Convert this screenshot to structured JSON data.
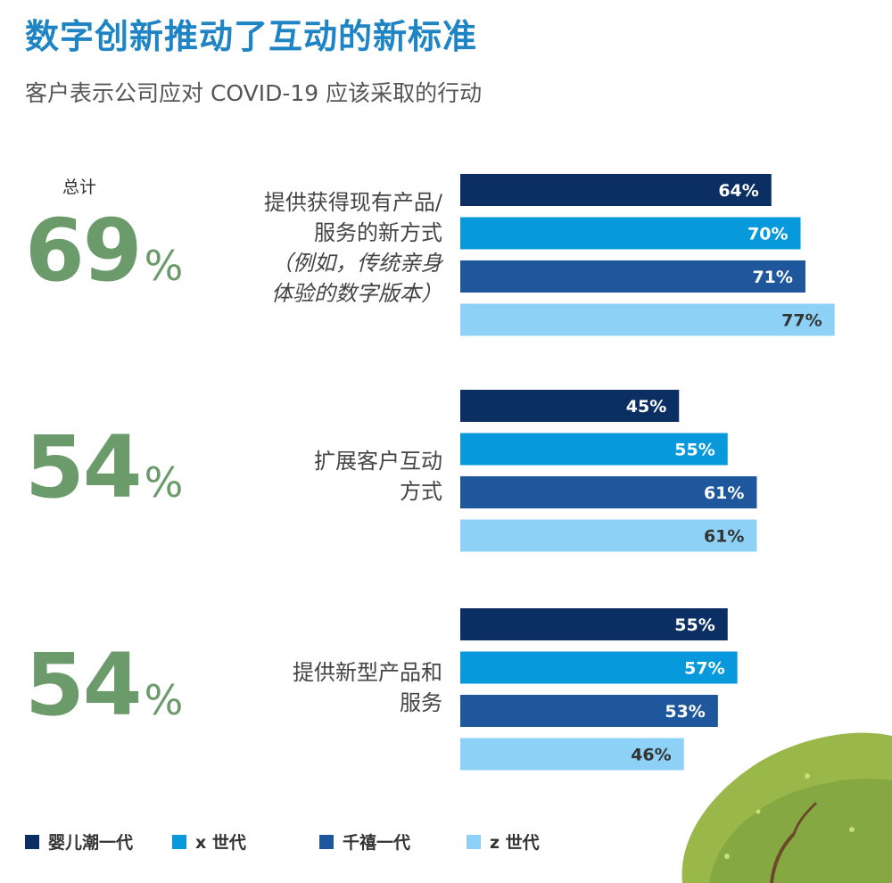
{
  "title": "数字创新推动了互动的新标准",
  "subtitle": "客户表示公司应对 COVID-19 应该采取的行动",
  "total_label": "总计",
  "totals": [
    {
      "value": "69",
      "unit": "%"
    },
    {
      "value": "54",
      "unit": "%"
    },
    {
      "value": "54",
      "unit": "%"
    }
  ],
  "categories": [
    {
      "line1": "提供获得现有产品/",
      "line2": "服务的新方式",
      "note1": "（例如，传统亲身",
      "note2": "体验的数字版本）"
    },
    {
      "line1": "扩展客户互动",
      "line2": "方式",
      "note1": "",
      "note2": ""
    },
    {
      "line1": "提供新型产品和",
      "line2": "服务",
      "note1": "",
      "note2": ""
    }
  ],
  "legend": [
    {
      "label": "婴儿潮一代",
      "color": "#0c2f63"
    },
    {
      "label": "x 世代",
      "color": "#0899dc"
    },
    {
      "label": "千禧一代",
      "color": "#1e579c"
    },
    {
      "label": "z 世代",
      "color": "#8dd1f7"
    }
  ],
  "chart_data": {
    "type": "bar",
    "orientation": "horizontal",
    "categories": [
      "提供获得现有产品/服务的新方式（例如，传统亲身体验的数字版本）",
      "扩展客户互动方式",
      "提供新型产品和服务"
    ],
    "series": [
      {
        "name": "婴儿潮一代",
        "color": "#0c2f63",
        "values": [
          64,
          45,
          55
        ]
      },
      {
        "name": "x 世代",
        "color": "#0899dc",
        "values": [
          70,
          55,
          57
        ]
      },
      {
        "name": "千禧一代",
        "color": "#1e579c",
        "values": [
          71,
          61,
          53
        ]
      },
      {
        "name": "z 世代",
        "color": "#8dd1f7",
        "values": [
          77,
          61,
          46
        ]
      }
    ],
    "value_suffix": "%",
    "xlim": [
      0,
      100
    ],
    "grid": false,
    "legend_position": "bottom"
  }
}
